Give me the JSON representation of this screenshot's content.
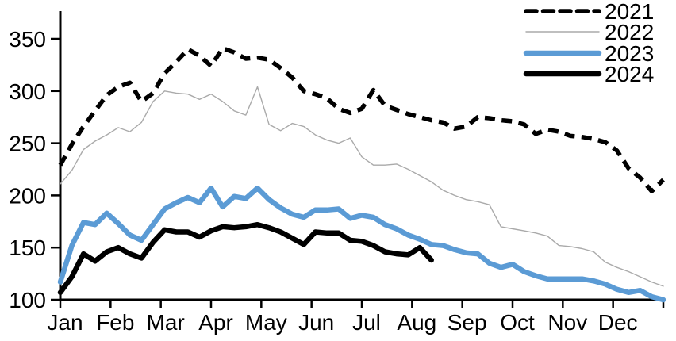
{
  "chart_data": {
    "type": "line",
    "title": "",
    "xlabel": "",
    "ylabel": "",
    "x_categories": [
      "Jan",
      "Feb",
      "Mar",
      "Apr",
      "May",
      "Jun",
      "Jul",
      "Aug",
      "Sep",
      "Oct",
      "Nov",
      "Dec"
    ],
    "y_ticks": [
      100,
      150,
      200,
      250,
      300,
      350
    ],
    "ylim": [
      100,
      375
    ],
    "grid": false,
    "legend_position": "top-right",
    "axis_color": "#000000",
    "background_color": "#ffffff",
    "frequency": "weekly",
    "series": [
      {
        "name": "2021",
        "color": "#000000",
        "style": "dashed",
        "stroke_width": 5.5,
        "values": [
          229,
          249,
          266,
          281,
          296,
          304,
          308,
          290,
          298,
          317,
          328,
          340,
          334,
          324,
          341,
          337,
          331,
          332,
          330,
          322,
          313,
          300,
          297,
          293,
          283,
          279,
          283,
          301,
          286,
          282,
          278,
          275,
          272,
          270,
          264,
          266,
          275,
          274,
          272,
          271,
          268,
          259,
          263,
          261,
          257,
          256,
          254,
          251,
          243,
          226,
          217,
          204,
          215
        ]
      },
      {
        "name": "2022",
        "color": "#AAAAAA",
        "style": "solid-thin",
        "stroke_width": 1.4,
        "values": [
          211,
          224,
          244,
          252,
          258,
          265,
          261,
          270,
          290,
          300,
          298,
          297,
          292,
          297,
          290,
          281,
          277,
          304,
          268,
          262,
          269,
          266,
          258,
          253,
          250,
          255,
          237,
          229,
          229,
          230,
          225,
          219,
          213,
          205,
          200,
          196,
          194,
          191,
          170,
          168,
          166,
          164,
          161,
          152,
          151,
          149,
          146,
          136,
          131,
          127,
          122,
          117,
          113
        ]
      },
      {
        "name": "2023",
        "color": "#5B9BD5",
        "style": "solid-thick",
        "stroke_width": 6.5,
        "values": [
          117,
          152,
          174,
          172,
          183,
          173,
          162,
          157,
          172,
          187,
          193,
          198,
          193,
          207,
          189,
          199,
          197,
          207,
          196,
          188,
          182,
          179,
          186,
          186,
          187,
          178,
          181,
          179,
          172,
          168,
          162,
          158,
          153,
          152,
          148,
          145,
          144,
          135,
          131,
          134,
          127,
          123,
          120,
          120,
          120,
          120,
          118,
          115,
          110,
          107,
          109,
          103,
          100
        ]
      },
      {
        "name": "2024",
        "color": "#000000",
        "style": "solid-thick",
        "stroke_width": 6.5,
        "values": [
          107,
          122,
          144,
          137,
          146,
          150,
          144,
          140,
          155,
          167,
          165,
          165,
          160,
          166,
          170,
          169,
          170,
          172,
          169,
          165,
          159,
          153,
          165,
          164,
          164,
          157,
          156,
          152,
          146,
          144,
          143,
          150,
          138
        ]
      }
    ]
  }
}
